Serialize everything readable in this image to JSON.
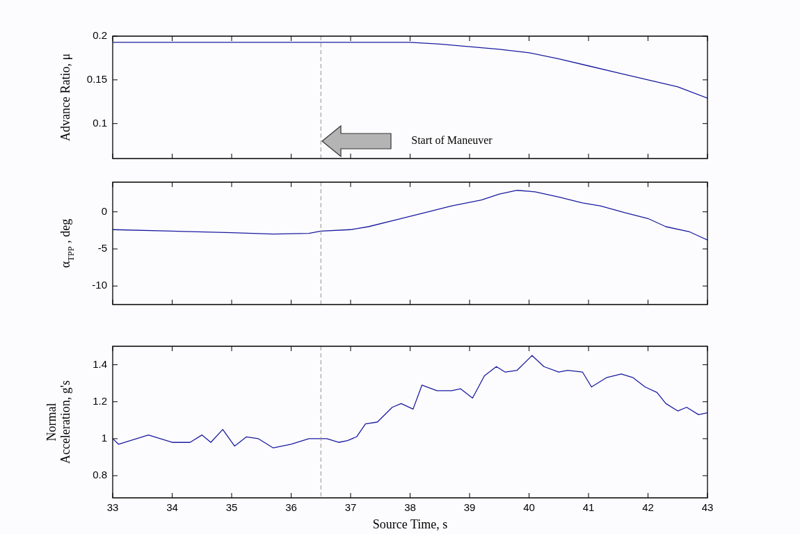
{
  "chart_data": [
    {
      "type": "line",
      "ylabel": "Advance Ratio, μ",
      "x": [
        33,
        38,
        38.5,
        39,
        39.5,
        40,
        40.5,
        41,
        41.5,
        42,
        42.5,
        43
      ],
      "series": [
        {
          "color": "#1a1aa0",
          "values": [
            0.193,
            0.193,
            0.191,
            0.188,
            0.185,
            0.181,
            0.174,
            0.166,
            0.158,
            0.15,
            0.142,
            0.129
          ]
        }
      ],
      "xlim": [
        33,
        43
      ],
      "xticks": [
        33,
        34,
        35,
        36,
        37,
        38,
        39,
        40,
        41,
        42,
        43
      ],
      "ylim": [
        0.06,
        0.2
      ],
      "yticks": [
        0.1,
        0.15,
        0.2
      ],
      "ref_lines": [
        {
          "axis": "x",
          "value": 36.5,
          "color": "#909090",
          "line_style": "dashed"
        }
      ],
      "annotations": [
        "Start of Maneuver"
      ],
      "grid": false,
      "legend": false,
      "marker": "none",
      "line_style": "solid",
      "tick_labels": "y"
    },
    {
      "type": "line",
      "ylabel": "α$_{TPP}$ , deg",
      "x": [
        33,
        34,
        35,
        35.7,
        36.3,
        36.5,
        37,
        37.3,
        37.8,
        38.2,
        38.7,
        39.2,
        39.5,
        39.8,
        40.1,
        40.5,
        40.9,
        41.2,
        41.6,
        42,
        42.3,
        42.7,
        43
      ],
      "series": [
        {
          "color": "#1a1aa0",
          "values": [
            -2.4,
            -2.6,
            -2.8,
            -3.0,
            -2.9,
            -2.6,
            -2.4,
            -2.0,
            -1.0,
            -0.2,
            0.8,
            1.6,
            2.4,
            2.9,
            2.7,
            2.0,
            1.2,
            0.8,
            -0.1,
            -0.9,
            -2.0,
            -2.7,
            -3.8
          ]
        }
      ],
      "xlim": [
        33,
        43
      ],
      "xticks": [
        33,
        34,
        35,
        36,
        37,
        38,
        39,
        40,
        41,
        42,
        43
      ],
      "ylim": [
        -12.5,
        4
      ],
      "yticks": [
        -10,
        -5,
        0
      ],
      "ref_lines": [
        {
          "axis": "x",
          "value": 36.5,
          "color": "#909090",
          "line_style": "dashed"
        }
      ],
      "grid": false,
      "legend": false,
      "marker": "none",
      "line_style": "solid",
      "tick_labels": "y"
    },
    {
      "type": "line",
      "xlabel": "Source Time, s",
      "ylabel": "Normal Acceleration, g's",
      "x": [
        33,
        33.1,
        33.6,
        34,
        34.3,
        34.5,
        34.65,
        34.85,
        35.05,
        35.25,
        35.45,
        35.7,
        36,
        36.3,
        36.6,
        36.8,
        36.95,
        37.1,
        37.25,
        37.45,
        37.7,
        37.85,
        38.05,
        38.2,
        38.45,
        38.7,
        38.85,
        39.05,
        39.25,
        39.45,
        39.6,
        39.8,
        40.05,
        40.25,
        40.5,
        40.65,
        40.9,
        41.05,
        41.3,
        41.55,
        41.75,
        41.95,
        42.15,
        42.3,
        42.5,
        42.65,
        42.85,
        43
      ],
      "series": [
        {
          "color": "#1a1aa0",
          "values": [
            1.0,
            0.97,
            1.02,
            0.98,
            0.98,
            1.02,
            0.98,
            1.05,
            0.96,
            1.01,
            1.0,
            0.95,
            0.97,
            1.0,
            1.0,
            0.98,
            0.99,
            1.01,
            1.08,
            1.09,
            1.17,
            1.19,
            1.16,
            1.29,
            1.26,
            1.26,
            1.27,
            1.22,
            1.34,
            1.39,
            1.36,
            1.37,
            1.45,
            1.39,
            1.36,
            1.37,
            1.36,
            1.28,
            1.33,
            1.35,
            1.33,
            1.28,
            1.25,
            1.19,
            1.15,
            1.17,
            1.13,
            1.14
          ]
        }
      ],
      "xlim": [
        33,
        43
      ],
      "xticks": [
        33,
        34,
        35,
        36,
        37,
        38,
        39,
        40,
        41,
        42,
        43
      ],
      "ylim": [
        0.68,
        1.5
      ],
      "yticks": [
        0.8,
        1,
        1.2,
        1.4
      ],
      "ref_lines": [
        {
          "axis": "x",
          "value": 36.5,
          "color": "#909090",
          "line_style": "dashed"
        }
      ],
      "grid": false,
      "legend": false,
      "marker": "none",
      "line_style": "solid"
    }
  ]
}
